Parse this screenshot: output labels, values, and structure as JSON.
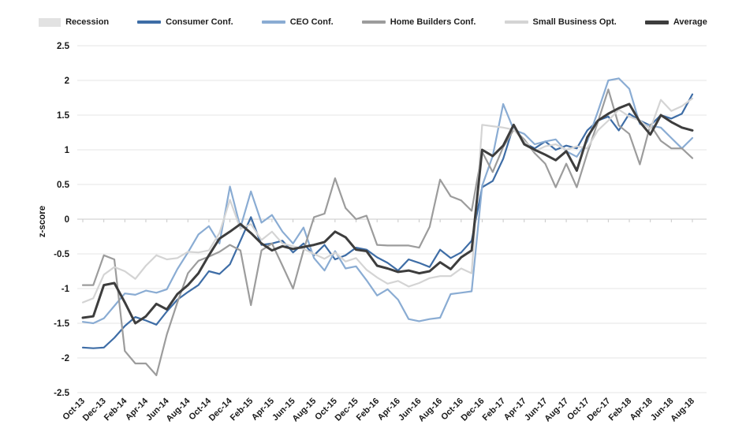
{
  "chart_data": {
    "type": "line",
    "title": "",
    "ylabel": "z-score",
    "ylim": [
      -2.5,
      2.5
    ],
    "ytick_step": 0.5,
    "x_label_every": 2,
    "grid": "horizontal",
    "legend_position": "top",
    "x": [
      "Oct-13",
      "Nov-13",
      "Dec-13",
      "Jan-14",
      "Feb-14",
      "Mar-14",
      "Apr-14",
      "May-14",
      "Jun-14",
      "Jul-14",
      "Aug-14",
      "Sep-14",
      "Oct-14",
      "Nov-14",
      "Dec-14",
      "Jan-15",
      "Feb-15",
      "Mar-15",
      "Apr-15",
      "May-15",
      "Jun-15",
      "Jul-15",
      "Aug-15",
      "Sep-15",
      "Oct-15",
      "Nov-15",
      "Dec-15",
      "Jan-16",
      "Feb-16",
      "Mar-16",
      "Apr-16",
      "May-16",
      "Jun-16",
      "Jul-16",
      "Aug-16",
      "Sep-16",
      "Oct-16",
      "Nov-16",
      "Dec-16",
      "Jan-17",
      "Feb-17",
      "Mar-17",
      "Apr-17",
      "May-17",
      "Jun-17",
      "Jul-17",
      "Aug-17",
      "Sep-17",
      "Oct-17",
      "Nov-17",
      "Dec-17",
      "Jan-18",
      "Feb-18",
      "Mar-18",
      "Apr-18",
      "May-18",
      "Jun-18",
      "Jul-18",
      "Aug-18"
    ],
    "series": [
      {
        "name": "Recession",
        "swatch": "box",
        "color": "#e2e2e2",
        "width": 0,
        "values": []
      },
      {
        "name": "Consumer Conf.",
        "swatch": "line",
        "color": "#3e6da6",
        "width": 2.2,
        "values": [
          -1.85,
          -1.86,
          -1.85,
          -1.71,
          -1.54,
          -1.41,
          -1.46,
          -1.52,
          -1.33,
          -1.16,
          -1.05,
          -0.95,
          -0.75,
          -0.79,
          -0.65,
          -0.31,
          0.03,
          -0.37,
          -0.35,
          -0.31,
          -0.48,
          -0.35,
          -0.52,
          -0.37,
          -0.58,
          -0.52,
          -0.41,
          -0.44,
          -0.55,
          -0.63,
          -0.74,
          -0.58,
          -0.63,
          -0.69,
          -0.44,
          -0.56,
          -0.48,
          -0.31,
          0.46,
          0.55,
          0.87,
          1.35,
          1.1,
          1.02,
          1.12,
          1.0,
          1.06,
          1.02,
          1.28,
          1.42,
          1.48,
          1.28,
          1.52,
          1.42,
          1.35,
          1.5,
          1.45,
          1.52,
          1.8
        ]
      },
      {
        "name": "CEO Conf.",
        "swatch": "line",
        "color": "#8aacd3",
        "width": 2.2,
        "values": [
          -1.48,
          -1.5,
          -1.43,
          -1.25,
          -1.07,
          -1.09,
          -1.03,
          -1.06,
          -1.01,
          -0.72,
          -0.48,
          -0.22,
          -0.1,
          -0.35,
          0.47,
          -0.12,
          0.4,
          -0.05,
          0.06,
          -0.18,
          -0.35,
          -0.12,
          -0.56,
          -0.74,
          -0.46,
          -0.71,
          -0.68,
          -0.88,
          -1.1,
          -1.01,
          -1.16,
          -1.44,
          -1.47,
          -1.44,
          -1.42,
          -1.08,
          -1.06,
          -1.04,
          0.48,
          0.91,
          1.66,
          1.29,
          1.23,
          1.08,
          1.12,
          1.15,
          0.98,
          0.9,
          1.12,
          1.55,
          2.0,
          2.03,
          1.88,
          1.37,
          1.35,
          1.32,
          1.17,
          1.02,
          1.17
        ]
      },
      {
        "name": "Home Builders Conf.",
        "swatch": "line",
        "color": "#9c9c9c",
        "width": 2.2,
        "values": [
          -0.95,
          -0.95,
          -0.52,
          -0.58,
          -1.9,
          -2.08,
          -2.08,
          -2.25,
          -1.66,
          -1.2,
          -0.78,
          -0.6,
          -0.54,
          -0.47,
          -0.37,
          -0.45,
          -1.24,
          -0.45,
          -0.35,
          -0.67,
          -1.0,
          -0.45,
          0.03,
          0.08,
          0.59,
          0.16,
          0.0,
          0.05,
          -0.37,
          -0.38,
          -0.38,
          -0.38,
          -0.41,
          -0.11,
          0.57,
          0.33,
          0.27,
          0.12,
          0.97,
          0.68,
          1.04,
          1.29,
          1.15,
          0.95,
          0.8,
          0.46,
          0.8,
          0.46,
          0.95,
          1.4,
          1.87,
          1.35,
          1.23,
          0.79,
          1.36,
          1.13,
          1.02,
          1.02,
          0.88
        ]
      },
      {
        "name": "Small Business Opt.",
        "swatch": "line",
        "color": "#d4d4d4",
        "width": 2.2,
        "values": [
          -1.2,
          -1.14,
          -0.8,
          -0.69,
          -0.75,
          -0.86,
          -0.67,
          -0.52,
          -0.58,
          -0.56,
          -0.47,
          -0.48,
          -0.45,
          -0.2,
          0.28,
          -0.14,
          -0.07,
          -0.3,
          -0.18,
          -0.35,
          -0.39,
          -0.43,
          -0.5,
          -0.57,
          -0.48,
          -0.61,
          -0.56,
          -0.73,
          -0.84,
          -0.93,
          -0.89,
          -0.97,
          -0.92,
          -0.85,
          -0.82,
          -0.82,
          -0.71,
          -0.78,
          1.36,
          1.34,
          1.32,
          1.29,
          1.12,
          0.98,
          1.05,
          1.08,
          1.0,
          1.05,
          1.02,
          1.28,
          1.42,
          1.58,
          1.48,
          1.42,
          1.3,
          1.72,
          1.56,
          1.63,
          1.74
        ]
      },
      {
        "name": "Average",
        "swatch": "line",
        "color": "#3d3d3d",
        "width": 3,
        "values": [
          -1.42,
          -1.4,
          -0.95,
          -0.92,
          -1.2,
          -1.5,
          -1.4,
          -1.22,
          -1.3,
          -1.08,
          -0.95,
          -0.78,
          -0.52,
          -0.28,
          -0.18,
          -0.07,
          -0.2,
          -0.35,
          -0.45,
          -0.39,
          -0.43,
          -0.4,
          -0.37,
          -0.33,
          -0.18,
          -0.26,
          -0.44,
          -0.46,
          -0.67,
          -0.71,
          -0.76,
          -0.74,
          -0.78,
          -0.75,
          -0.62,
          -0.72,
          -0.55,
          -0.45,
          1.0,
          0.91,
          1.06,
          1.36,
          1.08,
          1.0,
          0.93,
          0.85,
          0.98,
          0.7,
          1.18,
          1.42,
          1.52,
          1.6,
          1.66,
          1.4,
          1.22,
          1.5,
          1.4,
          1.32,
          1.28
        ]
      }
    ],
    "colors": {
      "grid": "#e4e4e4",
      "zero_axis": "#c9c9c9",
      "tick": "#c9c9c9",
      "background": "#ffffff"
    }
  }
}
